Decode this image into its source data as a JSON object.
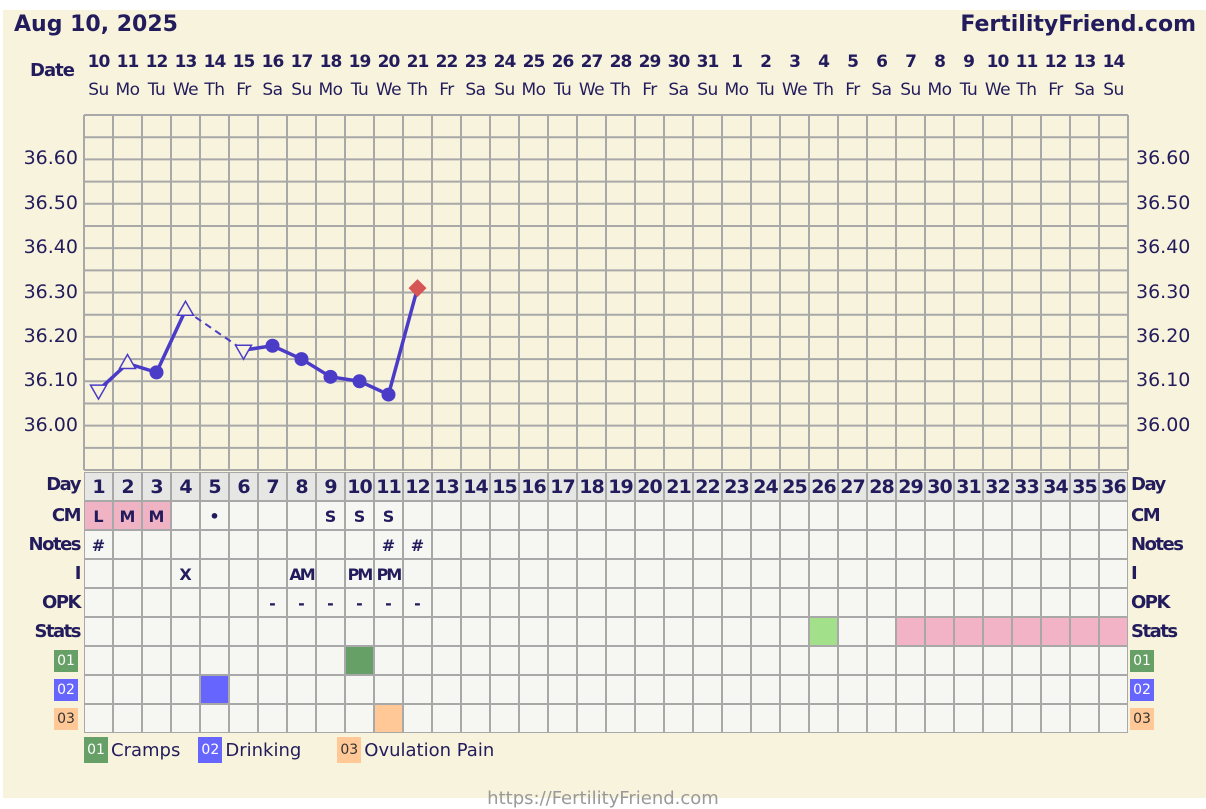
{
  "header": {
    "title": "Aug 10, 2025",
    "brand": "FertilityFriend.com"
  },
  "footer": "https://FertilityFriend.com",
  "colors": {
    "text": "#231c5c",
    "line": "#4b3cc8",
    "today_marker": "#d65555",
    "grid": "#a8a8a8",
    "panel": "#f8f3dc",
    "cell": "#f6f6f2",
    "cm_bg": "#f0b3c4",
    "stats_green": "#a3e08a",
    "stats_pink": "#f2b3c6"
  },
  "chart_data": {
    "type": "line",
    "ylim": [
      35.9,
      36.7
    ],
    "yticks": [
      "36.00",
      "36.10",
      "36.20",
      "36.30",
      "36.40",
      "36.50",
      "36.60"
    ],
    "grid": true,
    "date_label": "Date",
    "dates": [
      "10",
      "11",
      "12",
      "13",
      "14",
      "15",
      "16",
      "17",
      "18",
      "19",
      "20",
      "21",
      "22",
      "23",
      "24",
      "25",
      "26",
      "27",
      "28",
      "29",
      "30",
      "31",
      "1",
      "2",
      "3",
      "4",
      "5",
      "6",
      "7",
      "8",
      "9",
      "10",
      "11",
      "12",
      "13",
      "14"
    ],
    "weekdays": [
      "Su",
      "Mo",
      "Tu",
      "We",
      "Th",
      "Fr",
      "Sa",
      "Su",
      "Mo",
      "Tu",
      "We",
      "Th",
      "Fr",
      "Sa",
      "Su",
      "Mo",
      "Tu",
      "We",
      "Th",
      "Fr",
      "Sa",
      "Su",
      "Mo",
      "Tu",
      "We",
      "Th",
      "Fr",
      "Sa",
      "Su",
      "Mo",
      "Tu",
      "We",
      "Th",
      "Fr",
      "Sa",
      "Su"
    ],
    "temps": [
      {
        "day": 1,
        "value": 36.08,
        "marker": "triangle-down-open"
      },
      {
        "day": 2,
        "value": 36.14,
        "marker": "triangle-up-open"
      },
      {
        "day": 3,
        "value": 36.12,
        "marker": "dot"
      },
      {
        "day": 4,
        "value": 36.26,
        "marker": "triangle-up-open"
      },
      {
        "day": 6,
        "value": 36.17,
        "marker": "triangle-down-open"
      },
      {
        "day": 7,
        "value": 36.18,
        "marker": "dot"
      },
      {
        "day": 8,
        "value": 36.15,
        "marker": "dot"
      },
      {
        "day": 9,
        "value": 36.11,
        "marker": "dot"
      },
      {
        "day": 10,
        "value": 36.1,
        "marker": "dot"
      },
      {
        "day": 11,
        "value": 36.07,
        "marker": "dot"
      },
      {
        "day": 12,
        "value": 36.31,
        "marker": "diamond-red"
      }
    ]
  },
  "table": {
    "day_label": "Day",
    "days": 36,
    "rows": [
      {
        "label": "CM",
        "cells": {
          "1": "L",
          "2": "M",
          "3": "M",
          "5": "•",
          "9": "S",
          "10": "S",
          "11": "S"
        },
        "fills": {
          "1": "#f0b3c4",
          "2": "#f0b3c4",
          "3": "#f0b3c4"
        }
      },
      {
        "label": "Notes",
        "cells": {
          "1": "#",
          "11": "#",
          "12": "#"
        },
        "fills": {}
      },
      {
        "label": "I",
        "cells": {
          "4": "X",
          "8": "AM",
          "10": "PM",
          "11": "PM"
        },
        "fills": {}
      },
      {
        "label": "OPK",
        "cells": {
          "7": "-",
          "8": "-",
          "9": "-",
          "10": "-",
          "11": "-",
          "12": "-"
        },
        "fills": {}
      },
      {
        "label": "Stats",
        "cells": {},
        "fills": {
          "26": "#a3e08a",
          "29": "#f2b3c6",
          "30": "#f2b3c6",
          "31": "#f2b3c6",
          "32": "#f2b3c6",
          "33": "#f2b3c6",
          "34": "#f2b3c6",
          "35": "#f2b3c6",
          "36": "#f2b3c6"
        }
      },
      {
        "label": "01",
        "badge": "#66a066",
        "cells": {},
        "fills": {
          "10": "#66a066"
        }
      },
      {
        "label": "02",
        "badge": "#6666ff",
        "cells": {},
        "fills": {
          "5": "#6666ff"
        }
      },
      {
        "label": "03",
        "badge": "#ffc896",
        "badge_text": "#333",
        "cells": {},
        "fills": {
          "11": "#ffc896"
        }
      }
    ]
  },
  "legend": [
    {
      "code": "01",
      "label": "Cramps",
      "color": "#66a066"
    },
    {
      "code": "02",
      "label": "Drinking",
      "color": "#6666ff"
    },
    {
      "code": "03",
      "label": "Ovulation Pain",
      "color": "#ffc896",
      "text": "#333"
    }
  ]
}
